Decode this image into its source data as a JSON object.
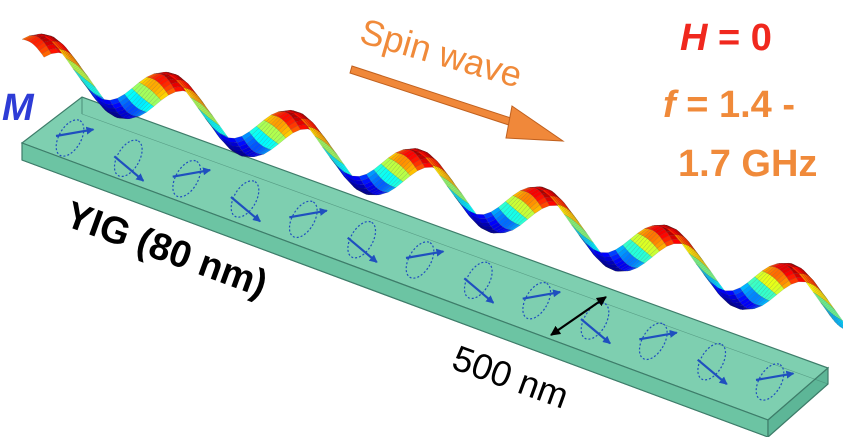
{
  "labels": {
    "magnetization": "M",
    "spin_wave": "Spin wave",
    "field": "H = 0",
    "field_symbol": "H",
    "field_value": " = 0",
    "frequency_line1": " = 1.4 -",
    "frequency_symbol": "f",
    "frequency_line2": "1.7 GHz",
    "material": "YIG (80 nm)",
    "width": "500 nm"
  },
  "colors": {
    "film_fill": "#7ecfb0",
    "film_edge": "#3e7d6a",
    "spin_arrow": "#1f4fbf",
    "magnetization_label": "#2e3cd6",
    "spin_wave_label": "#f08a3a",
    "field_label": "#f0281e",
    "frequency_label": "#f08a3a",
    "text_dark": "#000000"
  },
  "wave": {
    "colormap": "jet"
  }
}
